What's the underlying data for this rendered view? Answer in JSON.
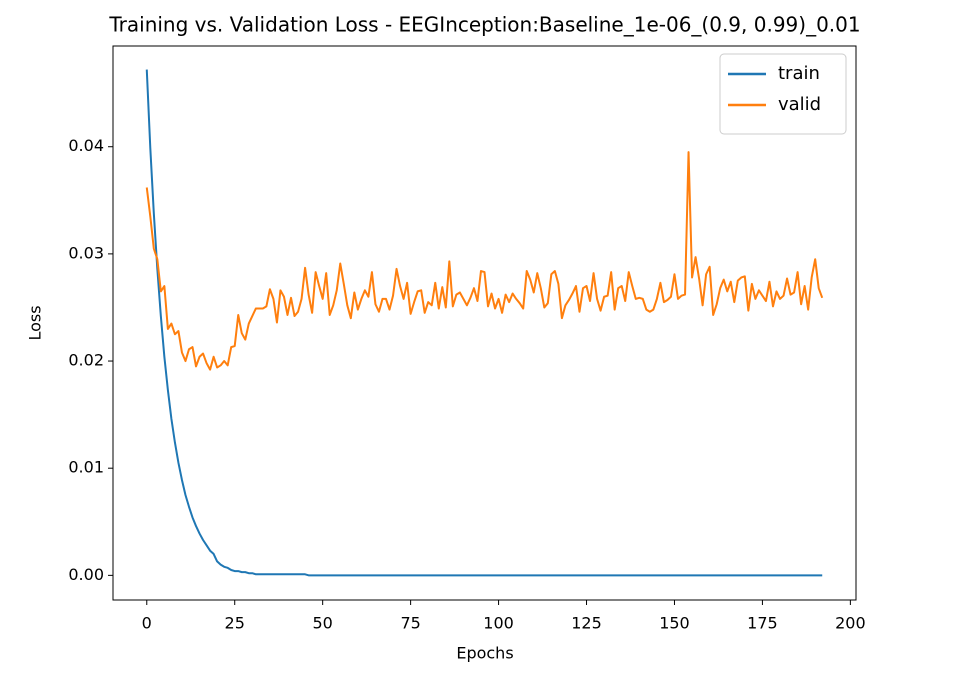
{
  "chart_data": {
    "type": "line",
    "title": "Training vs. Validation Loss - EEGInception:Baseline_1e-06_(0.9, 0.99)_0.01",
    "x_label": "Epochs",
    "y_label": "Loss",
    "x": [
      0,
      1,
      2,
      3,
      4,
      5,
      6,
      7,
      8,
      9,
      10,
      11,
      12,
      13,
      14,
      15,
      16,
      17,
      18,
      19,
      20,
      21,
      22,
      23,
      24,
      25,
      26,
      27,
      28,
      29,
      30,
      31,
      32,
      33,
      34,
      35,
      36,
      37,
      38,
      39,
      40,
      41,
      42,
      43,
      44,
      45,
      46,
      47,
      48,
      49,
      50,
      51,
      52,
      53,
      54,
      55,
      56,
      57,
      58,
      59,
      60,
      61,
      62,
      63,
      64,
      65,
      66,
      67,
      68,
      69,
      70,
      71,
      72,
      73,
      74,
      75,
      76,
      77,
      78,
      79,
      80,
      81,
      82,
      83,
      84,
      85,
      86,
      87,
      88,
      89,
      90,
      91,
      92,
      93,
      94,
      95,
      96,
      97,
      98,
      99,
      100,
      101,
      102,
      103,
      104,
      105,
      106,
      107,
      108,
      109,
      110,
      111,
      112,
      113,
      114,
      115,
      116,
      117,
      118,
      119,
      120,
      121,
      122,
      123,
      124,
      125,
      126,
      127,
      128,
      129,
      130,
      131,
      132,
      133,
      134,
      135,
      136,
      137,
      138,
      139,
      140,
      141,
      142,
      143,
      144,
      145,
      146,
      147,
      148,
      149,
      150,
      151,
      152,
      153,
      154,
      155,
      156,
      157,
      158,
      159,
      160,
      161,
      162,
      163,
      164,
      165,
      166,
      167,
      168,
      169,
      170,
      171,
      172,
      173,
      174,
      175,
      176,
      177,
      178,
      179,
      180,
      181,
      182,
      183,
      184,
      185,
      186,
      187,
      188,
      189,
      190,
      191,
      192
    ],
    "series": [
      {
        "name": "train",
        "color": "#1f77b4",
        "values": [
          0.0472,
          0.0399,
          0.0338,
          0.0286,
          0.0242,
          0.0204,
          0.0173,
          0.0146,
          0.0124,
          0.0105,
          0.0089,
          0.0075,
          0.0064,
          0.0054,
          0.0046,
          0.0039,
          0.0033,
          0.0028,
          0.0023,
          0.002,
          0.0013,
          0.001,
          0.0008,
          0.0007,
          0.0005,
          0.0004,
          0.0004,
          0.0003,
          0.0003,
          0.0002,
          0.0002,
          0.0001,
          0.0001,
          0.0001,
          0.0001,
          0.0001,
          0.0001,
          0.0001,
          0.0001,
          0.0001,
          0.0001,
          0.0001,
          0.0001,
          0.0001,
          0.0001,
          0.0001,
          0,
          0,
          0,
          0,
          0,
          0,
          0,
          0,
          0,
          0,
          0,
          0,
          0,
          0,
          0,
          0,
          0,
          0,
          0,
          0,
          0,
          0,
          0,
          0,
          0,
          0,
          0,
          0,
          0,
          0,
          0,
          0,
          0,
          0,
          0,
          0,
          0,
          0,
          0,
          0,
          0,
          0,
          0,
          0,
          0,
          0,
          0,
          0,
          0,
          0,
          0,
          0,
          0,
          0,
          0,
          0,
          0,
          0,
          0,
          0,
          0,
          0,
          0,
          0,
          0,
          0,
          0,
          0,
          0,
          0,
          0,
          0,
          0,
          0,
          0,
          0,
          0,
          0,
          0,
          0,
          0,
          0,
          0,
          0,
          0,
          0,
          0,
          0,
          0,
          0,
          0,
          0,
          0,
          0,
          0,
          0,
          0,
          0,
          0,
          0,
          0,
          0,
          0,
          0,
          0,
          0,
          0,
          0,
          0,
          0,
          0,
          0,
          0,
          0,
          0,
          0,
          0,
          0,
          0,
          0,
          0,
          0,
          0,
          0,
          0,
          0,
          0,
          0,
          0,
          0,
          0,
          0,
          0,
          0,
          0,
          0,
          0,
          0,
          0,
          0,
          0,
          0,
          0,
          0,
          0,
          0,
          0
        ]
      },
      {
        "name": "valid",
        "color": "#ff7f0e",
        "values": [
          0.0362,
          0.0335,
          0.0305,
          0.0295,
          0.0265,
          0.027,
          0.023,
          0.0235,
          0.0225,
          0.0228,
          0.0208,
          0.02,
          0.0211,
          0.0213,
          0.0195,
          0.0204,
          0.0207,
          0.0198,
          0.0192,
          0.0204,
          0.0194,
          0.0196,
          0.02,
          0.0196,
          0.0213,
          0.0214,
          0.0243,
          0.0226,
          0.022,
          0.0235,
          0.0242,
          0.0249,
          0.0249,
          0.0249,
          0.0251,
          0.0267,
          0.0258,
          0.0236,
          0.0266,
          0.026,
          0.0243,
          0.0259,
          0.0242,
          0.0246,
          0.0258,
          0.0287,
          0.0262,
          0.0245,
          0.0283,
          0.027,
          0.0258,
          0.0282,
          0.0243,
          0.0252,
          0.0266,
          0.0291,
          0.0272,
          0.0252,
          0.024,
          0.0264,
          0.0248,
          0.0258,
          0.0266,
          0.026,
          0.0283,
          0.0253,
          0.0246,
          0.0258,
          0.0258,
          0.0248,
          0.0261,
          0.0286,
          0.027,
          0.0258,
          0.0273,
          0.0244,
          0.0255,
          0.0265,
          0.0266,
          0.0245,
          0.0255,
          0.0252,
          0.0273,
          0.0249,
          0.0269,
          0.025,
          0.0293,
          0.0251,
          0.0262,
          0.0264,
          0.0258,
          0.0252,
          0.0259,
          0.0268,
          0.0256,
          0.0284,
          0.0283,
          0.0251,
          0.0263,
          0.0249,
          0.0258,
          0.0245,
          0.0262,
          0.0255,
          0.0263,
          0.0258,
          0.0254,
          0.0249,
          0.0284,
          0.0276,
          0.0264,
          0.0282,
          0.0268,
          0.025,
          0.0254,
          0.0281,
          0.0284,
          0.0272,
          0.024,
          0.0252,
          0.0257,
          0.0263,
          0.027,
          0.0246,
          0.0268,
          0.027,
          0.0256,
          0.0282,
          0.0258,
          0.0247,
          0.026,
          0.0261,
          0.0283,
          0.0248,
          0.0268,
          0.027,
          0.0256,
          0.0283,
          0.027,
          0.0258,
          0.0259,
          0.0258,
          0.0248,
          0.0246,
          0.0248,
          0.0258,
          0.0273,
          0.0255,
          0.0257,
          0.026,
          0.0281,
          0.0258,
          0.0261,
          0.0262,
          0.0395,
          0.0278,
          0.0297,
          0.0277,
          0.0252,
          0.0281,
          0.0288,
          0.0243,
          0.0253,
          0.0268,
          0.0276,
          0.0265,
          0.0274,
          0.0255,
          0.0275,
          0.0278,
          0.0279,
          0.0247,
          0.0272,
          0.0258,
          0.0266,
          0.0261,
          0.0256,
          0.0274,
          0.0251,
          0.0265,
          0.0258,
          0.0261,
          0.0277,
          0.0262,
          0.0264,
          0.0283,
          0.0253,
          0.027,
          0.0248,
          0.0278,
          0.0295,
          0.0268,
          0.0259
        ]
      }
    ],
    "xlim": [
      -9.6,
      201.6
    ],
    "ylim": [
      -0.0023,
      0.0494
    ],
    "xticks": [
      0,
      25,
      50,
      75,
      100,
      125,
      150,
      175,
      200
    ],
    "yticks": [
      {
        "value": 0,
        "label": "0.00"
      },
      {
        "value": 0.01,
        "label": "0.01"
      },
      {
        "value": 0.02,
        "label": "0.02"
      },
      {
        "value": 0.03,
        "label": "0.03"
      },
      {
        "value": 0.04,
        "label": "0.04"
      }
    ],
    "legend": "upper right",
    "grid": false
  }
}
